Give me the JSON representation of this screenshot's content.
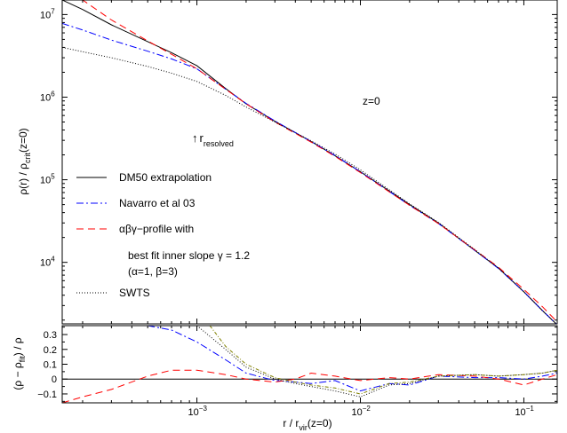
{
  "chart_data": [
    {
      "type": "line",
      "x_scale": "log",
      "y_scale": "log",
      "xlim": [
        0.00015,
        0.16
      ],
      "ylim": [
        1800,
        15000000
      ],
      "grid": false,
      "ylabel": {
        "main": "ρ(r)  / ρ",
        "sub": "crit",
        "tail": "(z=0)"
      },
      "y_ticks": [
        {
          "value": 10000,
          "base": "10",
          "exp": "4"
        },
        {
          "value": 100000,
          "base": "10",
          "exp": "5"
        },
        {
          "value": 1000000,
          "base": "10",
          "exp": "6"
        },
        {
          "value": 10000000,
          "base": "10",
          "exp": "7"
        }
      ],
      "annotations": {
        "redshift": "z=0",
        "resolved_arrow": "↑",
        "resolved_main": "r",
        "resolved_sub": "resolved"
      },
      "legend": {
        "placement": "bottom-left",
        "entries": [
          {
            "label": "DM50 extrapolation",
            "style": "solid",
            "color": "#000000"
          },
          {
            "label": "Navarro et al 03",
            "style": "dashdot",
            "color": "#0000ff"
          },
          {
            "label": "αβγ−profile with",
            "style": "dashed",
            "color": "#ff0000"
          },
          {
            "label": "best fit inner slope γ = 1.2",
            "style": "none",
            "color": "#000000"
          },
          {
            "label": "(α=1, β=3)",
            "style": "none",
            "color": "#000000"
          },
          {
            "label": "SWTS",
            "style": "dotted",
            "color": "#000000"
          }
        ]
      },
      "series": [
        {
          "name": "DM50 extrapolation",
          "style": "solid",
          "color": "#000000",
          "x": [
            0.00015,
            0.0002,
            0.0003,
            0.0005,
            0.0007,
            0.001,
            0.0015,
            0.002,
            0.003,
            0.005,
            0.007,
            0.01,
            0.02,
            0.03,
            0.05,
            0.07,
            0.1,
            0.13,
            0.16
          ],
          "y": [
            15000000,
            11500000,
            7500000,
            4700000,
            3450000,
            2400000,
            1270000,
            830000,
            510000,
            290000,
            195000,
            125000,
            50000,
            30000,
            14000,
            8500,
            4400,
            2600,
            1750
          ]
        },
        {
          "name": "Navarro et al 03",
          "style": "dashdot",
          "color": "#0000ff",
          "x": [
            0.00015,
            0.0002,
            0.0003,
            0.0005,
            0.0007,
            0.001,
            0.0015,
            0.002,
            0.003,
            0.005,
            0.007,
            0.01,
            0.02,
            0.03,
            0.05,
            0.07,
            0.1,
            0.13,
            0.16
          ],
          "y": [
            7800000,
            6500000,
            4900000,
            3600000,
            2900000,
            2200000,
            1250000,
            840000,
            515000,
            290000,
            197000,
            125000,
            49000,
            29500,
            14000,
            8400,
            4400,
            2600,
            1750
          ]
        },
        {
          "name": "αβγ−profile with",
          "style": "dashed",
          "color": "#ff0000",
          "x": [
            0.00015,
            0.0002,
            0.0003,
            0.0005,
            0.0007,
            0.001,
            0.0015,
            0.002,
            0.003,
            0.005,
            0.007,
            0.01,
            0.02,
            0.03,
            0.05,
            0.07,
            0.1,
            0.13,
            0.16
          ],
          "y": [
            22000000,
            15000000,
            8600000,
            4800000,
            3300000,
            2200000,
            1250000,
            830000,
            500000,
            285000,
            192000,
            122000,
            49000,
            29500,
            14200,
            8700,
            4700,
            2900,
            1900
          ]
        },
        {
          "name": "SWTS",
          "style": "dotted",
          "color": "#000000",
          "x": [
            0.00015,
            0.0002,
            0.0003,
            0.0005,
            0.0007,
            0.001,
            0.0015,
            0.002,
            0.003,
            0.005,
            0.007,
            0.01,
            0.02,
            0.03,
            0.05,
            0.07,
            0.1,
            0.13,
            0.16
          ],
          "y": [
            4000000,
            3550000,
            3000000,
            2350000,
            1950000,
            1550000,
            1050000,
            760000,
            500000,
            295000,
            205000,
            132000,
            51000,
            30500,
            14300,
            8500,
            4400,
            2600,
            1750
          ]
        }
      ]
    },
    {
      "type": "line",
      "x_scale": "log",
      "y_scale": "linear",
      "xlim": [
        0.00015,
        0.16
      ],
      "ylim": [
        -0.16,
        0.36
      ],
      "grid": false,
      "ylabel": {
        "p1": "(ρ − ρ",
        "sub": "fit",
        "p2": ") / ρ"
      },
      "xlabel": {
        "main": "r / r",
        "sub": "vir",
        "tail": "(z=0)"
      },
      "x_ticks": [
        {
          "value": 0.001,
          "base": "10",
          "exp": "−3"
        },
        {
          "value": 0.01,
          "base": "10",
          "exp": "−2"
        },
        {
          "value": 0.1,
          "base": "10",
          "exp": "−1"
        }
      ],
      "y_ticks": [
        {
          "value": 0.3,
          "label": "0.3"
        },
        {
          "value": 0.2,
          "label": "0.2"
        },
        {
          "value": 0.1,
          "label": "0.1"
        },
        {
          "value": 0,
          "label": "0"
        },
        {
          "value": -0.1,
          "label": "−0.1"
        }
      ],
      "series": [
        {
          "name": "DM50 extrapolation",
          "style": "solid",
          "color": "#000000",
          "x": [
            0.00015,
            0.16
          ],
          "y": [
            0,
            0
          ]
        },
        {
          "name": "Navarro et al 03",
          "style": "dashdot",
          "color": "#0000ff",
          "x": [
            0.0005,
            0.0007,
            0.001,
            0.0015,
            0.002,
            0.003,
            0.004,
            0.005,
            0.007,
            0.01,
            0.015,
            0.02,
            0.03,
            0.05,
            0.07,
            0.1,
            0.13,
            0.16
          ],
          "y": [
            0.36,
            0.33,
            0.25,
            0.13,
            0.04,
            -0.01,
            -0.02,
            -0.03,
            -0.01,
            -0.08,
            -0.03,
            -0.04,
            0.02,
            0.01,
            0.01,
            0.0,
            0.02,
            0.04
          ]
        },
        {
          "name": "αβγ−profile with",
          "style": "dashed",
          "color": "#ff0000",
          "x": [
            0.00015,
            0.0002,
            0.0003,
            0.0005,
            0.0007,
            0.001,
            0.0015,
            0.002,
            0.003,
            0.004,
            0.005,
            0.007,
            0.01,
            0.015,
            0.02,
            0.03,
            0.05,
            0.07,
            0.1,
            0.13,
            0.16
          ],
          "y": [
            -0.16,
            -0.12,
            -0.07,
            0.02,
            0.06,
            0.06,
            0.03,
            0.0,
            -0.02,
            0.0,
            0.04,
            0.02,
            -0.01,
            0.01,
            0.0,
            0.03,
            0.02,
            0.0,
            -0.04,
            0.0,
            0.03
          ]
        },
        {
          "name": "SWTS",
          "style": "dotted",
          "color": "#000000",
          "x": [
            0.001,
            0.0015,
            0.002,
            0.003,
            0.004,
            0.005,
            0.007,
            0.01,
            0.015,
            0.02,
            0.03,
            0.05,
            0.07,
            0.1,
            0.13,
            0.16
          ],
          "y": [
            0.36,
            0.2,
            0.08,
            0.0,
            -0.03,
            -0.05,
            -0.08,
            -0.12,
            -0.04,
            -0.03,
            0.02,
            0.03,
            0.02,
            0.03,
            0.04,
            0.06
          ]
        },
        {
          "name": "SWTS (dot-dash)",
          "style": "dashdot-short",
          "color": "#808000",
          "x": [
            0.0012,
            0.0015,
            0.002,
            0.003,
            0.004,
            0.005,
            0.007,
            0.01,
            0.015,
            0.02,
            0.03,
            0.05,
            0.07,
            0.1,
            0.13,
            0.16
          ],
          "y": [
            0.36,
            0.22,
            0.1,
            0.01,
            -0.02,
            -0.04,
            -0.06,
            -0.1,
            -0.03,
            -0.02,
            0.02,
            0.03,
            0.02,
            0.03,
            0.04,
            0.06
          ]
        }
      ]
    }
  ]
}
